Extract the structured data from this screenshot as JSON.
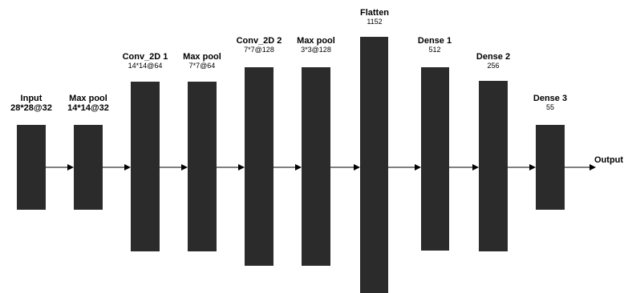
{
  "layers": [
    {
      "id": "input",
      "name": "Input",
      "dim": "28*28@32"
    },
    {
      "id": "maxpool-1",
      "name": "Max pool",
      "dim": "14*14@32"
    },
    {
      "id": "conv2d-1",
      "name": "Conv_2D 1",
      "dim": "14*14@64"
    },
    {
      "id": "maxpool-2",
      "name": "Max pool",
      "dim": "7*7@64"
    },
    {
      "id": "conv2d-2",
      "name": "Conv_2D 2",
      "dim": "7*7@128"
    },
    {
      "id": "maxpool-3",
      "name": "Max pool",
      "dim": "3*3@128"
    },
    {
      "id": "flatten",
      "name": "Flatten",
      "dim": "1152"
    },
    {
      "id": "dense-1",
      "name": "Dense 1",
      "dim": "512"
    },
    {
      "id": "dense-2",
      "name": "Dense 2",
      "dim": "256"
    },
    {
      "id": "dense-3",
      "name": "Dense 3",
      "dim": "55"
    }
  ],
  "output_label": "Output",
  "colors": {
    "block": "#2b2b2b",
    "arrow": "#000000",
    "background": "#ffffff"
  }
}
